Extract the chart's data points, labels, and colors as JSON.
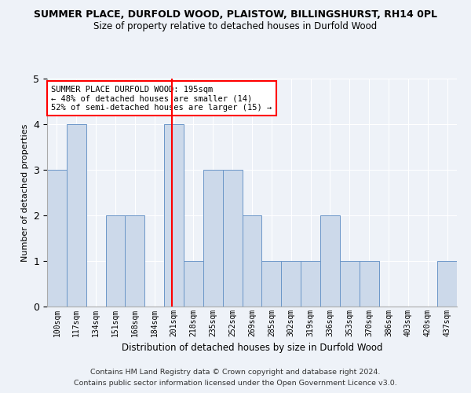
{
  "title": "SUMMER PLACE, DURFOLD WOOD, PLAISTOW, BILLINGSHURST, RH14 0PL",
  "subtitle": "Size of property relative to detached houses in Durfold Wood",
  "xlabel": "Distribution of detached houses by size in Durfold Wood",
  "ylabel": "Number of detached properties",
  "categories": [
    "100sqm",
    "117sqm",
    "134sqm",
    "151sqm",
    "168sqm",
    "184sqm",
    "201sqm",
    "218sqm",
    "235sqm",
    "252sqm",
    "269sqm",
    "285sqm",
    "302sqm",
    "319sqm",
    "336sqm",
    "353sqm",
    "370sqm",
    "386sqm",
    "403sqm",
    "420sqm",
    "437sqm"
  ],
  "values": [
    3,
    4,
    0,
    2,
    2,
    0,
    4,
    1,
    3,
    3,
    2,
    1,
    1,
    1,
    2,
    1,
    1,
    0,
    0,
    0,
    1
  ],
  "bar_color": "#ccd9ea",
  "bar_edge_color": "#6b96c8",
  "ref_line_x": 5.88,
  "annotation_text": "SUMMER PLACE DURFOLD WOOD: 195sqm\n← 48% of detached houses are smaller (14)\n52% of semi-detached houses are larger (15) →",
  "annotation_box_color": "white",
  "annotation_box_edge": "red",
  "ylim": [
    0,
    5
  ],
  "yticks": [
    0,
    1,
    2,
    3,
    4,
    5
  ],
  "footer1": "Contains HM Land Registry data © Crown copyright and database right 2024.",
  "footer2": "Contains public sector information licensed under the Open Government Licence v3.0.",
  "background_color": "#eef2f8",
  "plot_background": "#eef2f8"
}
